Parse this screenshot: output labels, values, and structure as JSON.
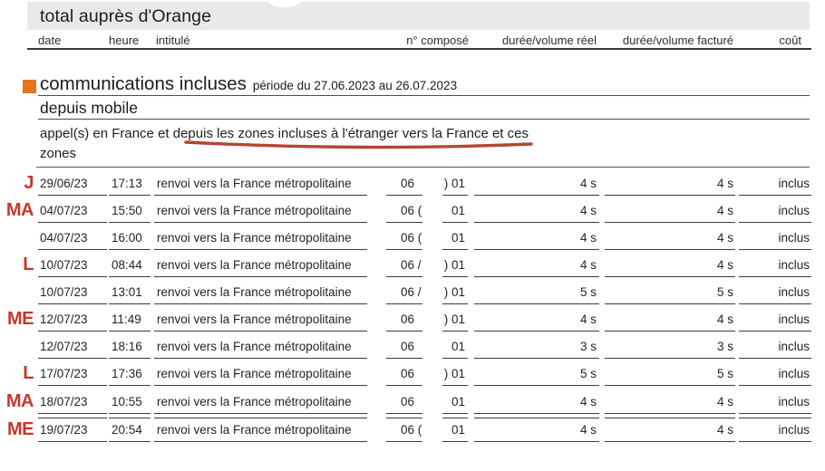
{
  "title": "total auprès d'Orange",
  "columns": {
    "date": "date",
    "heure": "heure",
    "intitule": "intitulé",
    "numero": "n° composé",
    "reel": "durée/volume réel",
    "facture": "durée/volume facturé",
    "cout": "coût"
  },
  "section": {
    "title": "communications incluses",
    "period": "période du 27.06.2023 au 26.07.2023",
    "subsection": "depuis mobile",
    "description_line1": "appel(s) en France et depuis les zones incluses à l'étranger vers la France et ces",
    "description_line2": "zones"
  },
  "colors": {
    "accent_orange": "#e8731a",
    "annotation_red": "#c9372a",
    "hand_underline_red": "#b23b29",
    "titlebar_gray": "#e9e9e9"
  },
  "rows": [
    {
      "day": "J",
      "date": "29/06/23",
      "heure": "17:13",
      "intitule": "renvoi vers la France métropolitaine",
      "num_left": "06",
      "num_right": ") 01",
      "reel": "4 s",
      "facture": "4 s",
      "cout": "inclus"
    },
    {
      "day": "MA",
      "date": "04/07/23",
      "heure": "15:50",
      "intitule": "renvoi vers la France métropolitaine",
      "num_left": "06 (",
      "num_right": "01",
      "reel": "4 s",
      "facture": "4 s",
      "cout": "inclus"
    },
    {
      "day": "",
      "date": "04/07/23",
      "heure": "16:00",
      "intitule": "renvoi vers la France métropolitaine",
      "num_left": "06 (",
      "num_right": "01",
      "reel": "4 s",
      "facture": "4 s",
      "cout": "inclus"
    },
    {
      "day": "L",
      "date": "10/07/23",
      "heure": "08:44",
      "intitule": "renvoi vers la France métropolitaine",
      "num_left": "06 /",
      "num_right": ") 01",
      "reel": "4 s",
      "facture": "4 s",
      "cout": "inclus"
    },
    {
      "day": "",
      "date": "10/07/23",
      "heure": "13:01",
      "intitule": "renvoi vers la France métropolitaine",
      "num_left": "06 /",
      "num_right": ") 01",
      "reel": "5 s",
      "facture": "5 s",
      "cout": "inclus"
    },
    {
      "day": "ME",
      "date": "12/07/23",
      "heure": "11:49",
      "intitule": "renvoi vers la France métropolitaine",
      "num_left": "06",
      "num_right": ") 01",
      "reel": "4 s",
      "facture": "4 s",
      "cout": "inclus"
    },
    {
      "day": "",
      "date": "12/07/23",
      "heure": "18:16",
      "intitule": "renvoi vers la France métropolitaine",
      "num_left": "06",
      "num_right": "01",
      "reel": "3 s",
      "facture": "3 s",
      "cout": "inclus"
    },
    {
      "day": "L",
      "date": "17/07/23",
      "heure": "17:36",
      "intitule": "renvoi vers la France métropolitaine",
      "num_left": "06",
      "num_right": ") 01",
      "reel": "5 s",
      "facture": "5 s",
      "cout": "inclus"
    },
    {
      "day": "MA",
      "date": "18/07/23",
      "heure": "10:55",
      "intitule": "renvoi vers la France métropolitaine",
      "num_left": "06",
      "num_right": "01",
      "reel": "4 s",
      "facture": "4 s",
      "cout": "inclus"
    },
    {
      "day": "ME",
      "date": "19/07/23",
      "heure": "20:54",
      "intitule": "renvoi vers la France métropolitaine",
      "num_left": "06 (",
      "num_right": "01",
      "reel": "4 s",
      "facture": "4 s",
      "cout": "inclus"
    }
  ]
}
